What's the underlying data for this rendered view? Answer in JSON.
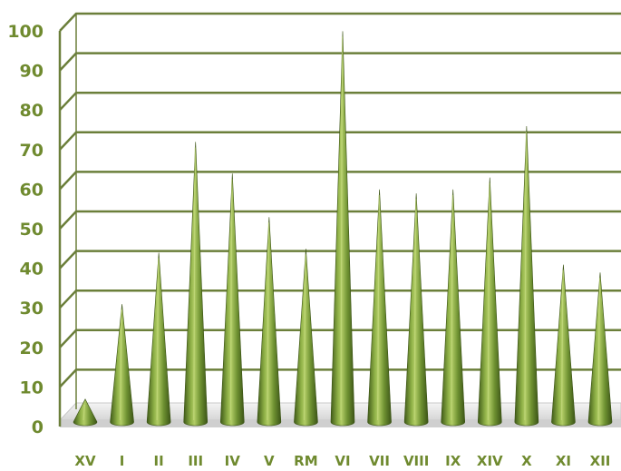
{
  "chart_data": {
    "type": "bar",
    "bar_shape": "3d-cone",
    "categories": [
      "XV",
      "I",
      "II",
      "III",
      "IV",
      "V",
      "RM",
      "VI",
      "VII",
      "VIII",
      "IX",
      "XIV",
      "X",
      "XI",
      "XII"
    ],
    "values": [
      6,
      30,
      43,
      71,
      63,
      52,
      44,
      99,
      59,
      58,
      59,
      62,
      75,
      40,
      38
    ],
    "yticks": [
      "0",
      "10",
      "20",
      "30",
      "40",
      "50",
      "60",
      "70",
      "80",
      "90",
      "100"
    ],
    "ylim": [
      0,
      100
    ],
    "grid": true,
    "legend": "none",
    "colors": {
      "cone_light": "#a8c45a",
      "cone_mid": "#6f9232",
      "cone_dark": "#3f5a18",
      "gridline": "#6b7f3a",
      "floor": "#e8e8e8",
      "label": "#6f8a2f"
    }
  }
}
